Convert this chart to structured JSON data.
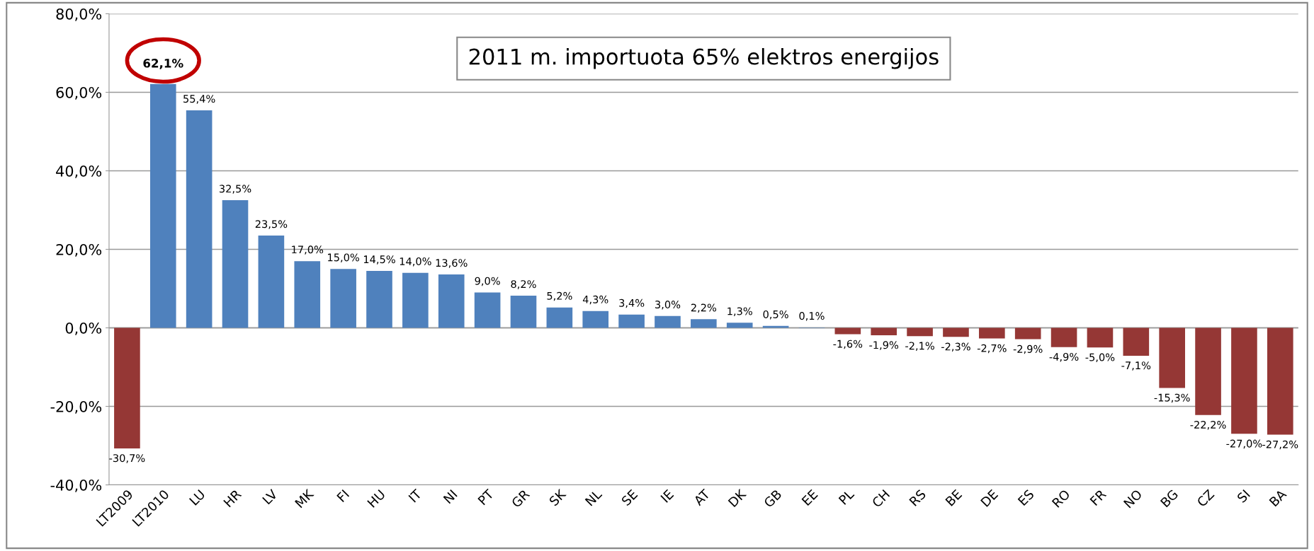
{
  "chart_data": {
    "type": "bar",
    "categories": [
      "LT2009",
      "LT2010",
      "LU",
      "HR",
      "LV",
      "MK",
      "FI",
      "HU",
      "IT",
      "NI",
      "PT",
      "GR",
      "SK",
      "NL",
      "SE",
      "IE",
      "AT",
      "DK",
      "GB",
      "EE",
      "PL",
      "CH",
      "RS",
      "BE",
      "DE",
      "ES",
      "RO",
      "FR",
      "NO",
      "BG",
      "CZ",
      "SI",
      "BA"
    ],
    "values": [
      -30.7,
      62.1,
      55.4,
      32.5,
      23.5,
      17.0,
      15.0,
      14.5,
      14.0,
      13.6,
      9.0,
      8.2,
      5.2,
      4.3,
      3.4,
      3.0,
      2.2,
      1.3,
      0.5,
      0.1,
      -1.6,
      -1.9,
      -2.1,
      -2.3,
      -2.7,
      -2.9,
      -4.9,
      -5.0,
      -7.1,
      -15.3,
      -22.2,
      -27.0,
      -27.2
    ],
    "colors": [
      "#953735",
      "#4f81bd",
      "#4f81bd",
      "#4f81bd",
      "#4f81bd",
      "#4f81bd",
      "#4f81bd",
      "#4f81bd",
      "#4f81bd",
      "#4f81bd",
      "#4f81bd",
      "#4f81bd",
      "#4f81bd",
      "#4f81bd",
      "#4f81bd",
      "#4f81bd",
      "#4f81bd",
      "#4f81bd",
      "#4f81bd",
      "#4f81bd",
      "#953735",
      "#953735",
      "#953735",
      "#953735",
      "#953735",
      "#953735",
      "#953735",
      "#953735",
      "#953735",
      "#953735",
      "#953735",
      "#953735",
      "#953735"
    ],
    "value_labels": [
      "-30,7%",
      null,
      "55,4%",
      "32,5%",
      "23,5%",
      "17,0%",
      "15,0%",
      "14,5%",
      "14,0%",
      "13,6%",
      "9,0%",
      "8,2%",
      "5,2%",
      "4,3%",
      "3,4%",
      "3,0%",
      "2,2%",
      "1,3%",
      "0,5%",
      "0,1%",
      "-1,6%",
      "-1,9%",
      "-2,1%",
      "-2,3%",
      "-2,7%",
      "-2,9%",
      "-4,9%",
      "-5,0%",
      "-7,1%",
      "-15,3%",
      "-22,2%",
      "-27,0%",
      "-27,2%"
    ],
    "annotations": [
      {
        "text": "62,1%",
        "x": "LT2010",
        "y": 62.1
      },
      "2011 m. importuota 65% elektros energijos"
    ],
    "ylim": [
      -40,
      80
    ],
    "yticks": [
      {
        "value": -40,
        "label": "-40,0%"
      },
      {
        "value": -20,
        "label": "-20,0%"
      },
      {
        "value": 0,
        "label": "0,0%"
      },
      {
        "value": 20,
        "label": "20,0%"
      },
      {
        "value": 40,
        "label": "40,0%"
      },
      {
        "value": 60,
        "label": "60,0%"
      },
      {
        "value": 80,
        "label": "80,0%"
      }
    ],
    "grid": "y"
  }
}
